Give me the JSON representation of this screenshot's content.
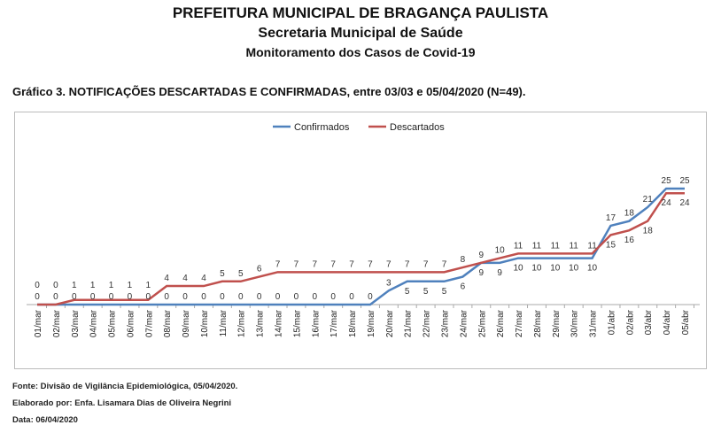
{
  "header": {
    "title": "PREFEITURA MUNICIPAL DE BRAGANÇA PAULISTA",
    "subtitle": "Secretaria Municipal de Saúde",
    "section": "Monitoramento dos Casos de Covid-19"
  },
  "chart_data": {
    "type": "line",
    "title": "Gráfico 3. NOTIFICAÇÕES DESCARTADAS E CONFIRMADAS, entre 03/03 e 05/04/2020 (N=49).",
    "categories": [
      "01/mar",
      "02/mar",
      "03/mar",
      "04/mar",
      "05/mar",
      "06/mar",
      "07/mar",
      "08/mar",
      "09/mar",
      "10/mar",
      "11/mar",
      "12/mar",
      "13/mar",
      "14/mar",
      "15/mar",
      "16/mar",
      "17/mar",
      "18/mar",
      "19/mar",
      "20/mar",
      "21/mar",
      "22/mar",
      "23/mar",
      "24/mar",
      "25/mar",
      "26/mar",
      "27/mar",
      "28/mar",
      "29/mar",
      "30/mar",
      "31/mar",
      "01/abr",
      "02/abr",
      "03/abr",
      "04/abr",
      "05/abr"
    ],
    "series": [
      {
        "name": "Confirmados",
        "color": "#4f81bd",
        "values": [
          0,
          0,
          0,
          0,
          0,
          0,
          0,
          0,
          0,
          0,
          0,
          0,
          0,
          0,
          0,
          0,
          0,
          0,
          0,
          3,
          5,
          5,
          5,
          6,
          9,
          9,
          10,
          10,
          10,
          10,
          10,
          17,
          18,
          21,
          25,
          25
        ]
      },
      {
        "name": "Descartados",
        "color": "#c0504d",
        "values": [
          0,
          0,
          1,
          1,
          1,
          1,
          1,
          4,
          4,
          4,
          5,
          5,
          6,
          7,
          7,
          7,
          7,
          7,
          7,
          7,
          7,
          7,
          7,
          8,
          9,
          10,
          11,
          11,
          11,
          11,
          11,
          15,
          16,
          18,
          24,
          24
        ]
      }
    ],
    "ylim": [
      0,
      26
    ],
    "grid": false,
    "legend": "top"
  },
  "footer": {
    "source": "Fonte: Divisão de Vigilância Epidemiológica, 05/04/2020.",
    "author": "Elaborado por: Enfa. Lisamara Dias de Oliveira Negrini",
    "date": "Data: 06/04/2020"
  }
}
